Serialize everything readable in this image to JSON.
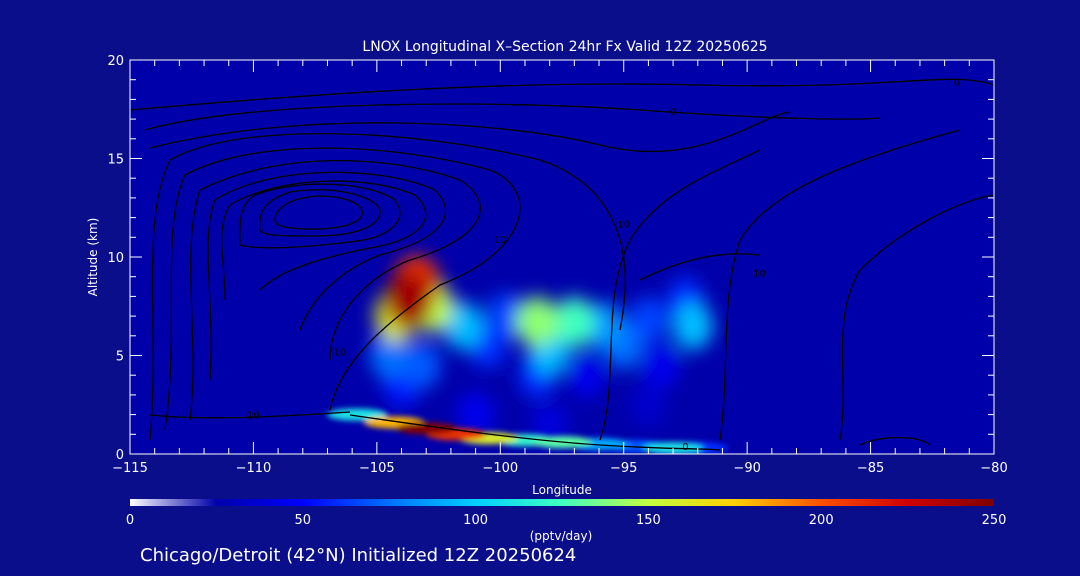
{
  "chart_data": {
    "type": "heatmap",
    "title": "LNOX Longitudinal X–Section 24hr  Fx Valid 12Z 20250625",
    "subtitle": "Chicago/Detroit (42°N) Initialized 12Z 20250624",
    "xlabel": "Longitude",
    "ylabel": "Altitude (km)",
    "xlim": [
      -115,
      -80
    ],
    "ylim": [
      0,
      20
    ],
    "x_ticks": [
      -115,
      -110,
      -105,
      -100,
      -95,
      -90,
      -85,
      -80
    ],
    "x_tick_labels": [
      "−115",
      "−110",
      "−105",
      "−100",
      "−95",
      "−90",
      "−85",
      "−80"
    ],
    "y_ticks": [
      0,
      5,
      10,
      15,
      20
    ],
    "y_tick_labels": [
      "0",
      "5",
      "10",
      "15",
      "20"
    ],
    "colorbar": {
      "label": "(pptv/day)",
      "range": [
        0,
        250
      ],
      "ticks": [
        0,
        50,
        100,
        150,
        200,
        250
      ],
      "tick_labels": [
        "0",
        "50",
        "100",
        "150",
        "200",
        "250"
      ],
      "colors": [
        "#ffffff",
        "#0000aa",
        "#0000ff",
        "#0070ff",
        "#00d0ff",
        "#40ffc0",
        "#c0ff40",
        "#ffd000",
        "#ff5000",
        "#d00000",
        "#800000"
      ]
    },
    "lnox_cells": [
      {
        "lon": -103.7,
        "alt": 7.8,
        "value": 240
      },
      {
        "lon": -103.4,
        "alt": 8.7,
        "value": 210
      },
      {
        "lon": -104.2,
        "alt": 7.0,
        "value": 160
      },
      {
        "lon": -102.8,
        "alt": 7.5,
        "value": 150
      },
      {
        "lon": -104.5,
        "alt": 5.0,
        "value": 75
      },
      {
        "lon": -103.2,
        "alt": 4.5,
        "value": 70
      },
      {
        "lon": -104.0,
        "alt": 3.5,
        "value": 55
      },
      {
        "lon": -101.5,
        "alt": 6.5,
        "value": 95
      },
      {
        "lon": -100.5,
        "alt": 5.5,
        "value": 60
      },
      {
        "lon": -99.8,
        "alt": 7.0,
        "value": 65
      },
      {
        "lon": -98.5,
        "alt": 6.7,
        "value": 140
      },
      {
        "lon": -97.0,
        "alt": 6.7,
        "value": 125
      },
      {
        "lon": -98.0,
        "alt": 5.2,
        "value": 95
      },
      {
        "lon": -98.5,
        "alt": 4.0,
        "value": 60
      },
      {
        "lon": -95.8,
        "alt": 6.5,
        "value": 85
      },
      {
        "lon": -95.0,
        "alt": 5.5,
        "value": 75
      },
      {
        "lon": -94.0,
        "alt": 6.8,
        "value": 65
      },
      {
        "lon": -92.2,
        "alt": 6.5,
        "value": 95
      },
      {
        "lon": -92.5,
        "alt": 7.8,
        "value": 60
      },
      {
        "lon": -96.5,
        "alt": 4.0,
        "value": 45
      },
      {
        "lon": -93.5,
        "alt": 4.5,
        "value": 45
      },
      {
        "lon": -101.0,
        "alt": 2.0,
        "value": 45
      },
      {
        "lon": -98.0,
        "alt": 1.5,
        "value": 40
      },
      {
        "lon": -94.0,
        "alt": 2.5,
        "value": 35
      }
    ],
    "surface_band": [
      {
        "lon": -105.8,
        "alt": 2.0,
        "value": 110
      },
      {
        "lon": -104.3,
        "alt": 1.6,
        "value": 180
      },
      {
        "lon": -103.0,
        "alt": 1.3,
        "value": 250
      },
      {
        "lon": -101.8,
        "alt": 1.0,
        "value": 210
      },
      {
        "lon": -100.5,
        "alt": 0.8,
        "value": 160
      },
      {
        "lon": -99.0,
        "alt": 0.7,
        "value": 120
      },
      {
        "lon": -97.5,
        "alt": 0.6,
        "value": 130
      },
      {
        "lon": -96.0,
        "alt": 0.5,
        "value": 90
      },
      {
        "lon": -94.5,
        "alt": 0.4,
        "value": 70
      },
      {
        "lon": -93.0,
        "alt": 0.3,
        "value": 110
      },
      {
        "lon": -92.0,
        "alt": 0.3,
        "value": 60
      }
    ],
    "contour_labels": [
      {
        "text": "10",
        "lon": -100,
        "alt": 10.7
      },
      {
        "text": "10",
        "lon": -95,
        "alt": 11.5
      },
      {
        "text": "10",
        "lon": -106.5,
        "alt": 5.0
      },
      {
        "text": "10",
        "lon": -110,
        "alt": 1.8
      },
      {
        "text": "10",
        "lon": -89.5,
        "alt": 9.0
      },
      {
        "text": "0",
        "lon": -93,
        "alt": 17.2
      },
      {
        "text": "0",
        "lon": -81.5,
        "alt": 18.7
      },
      {
        "text": "0",
        "lon": -92.5,
        "alt": 0.2
      }
    ]
  }
}
